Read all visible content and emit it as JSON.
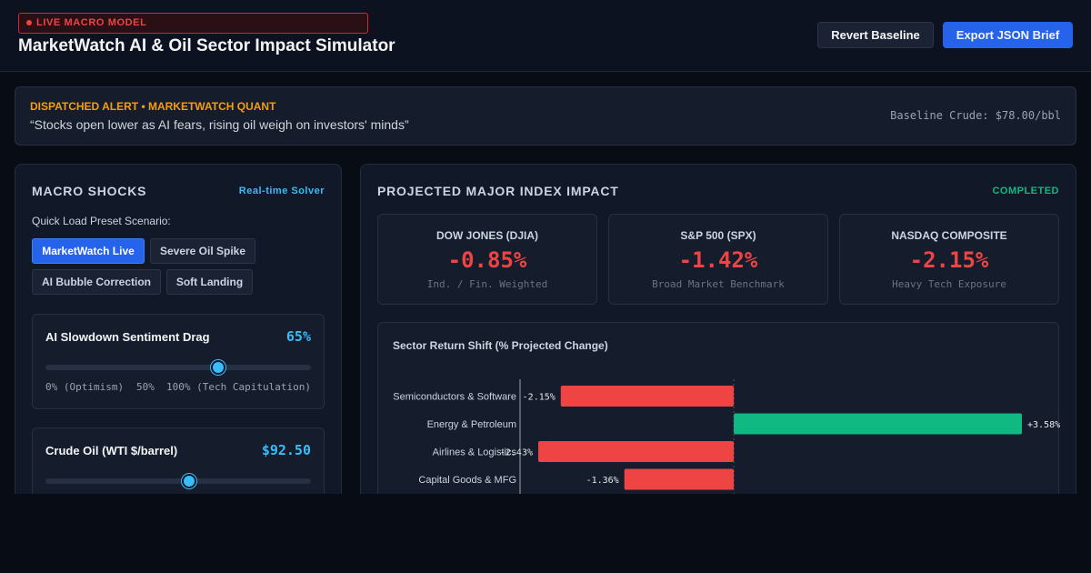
{
  "header": {
    "badge": "LIVE MACRO MODEL",
    "title": "MarketWatch AI & Oil Sector Impact Simulator",
    "revert_label": "Revert Baseline",
    "export_label": "Export JSON Brief"
  },
  "alert": {
    "kicker": "DISPATCHED ALERT • MARKETWATCH QUANT",
    "quote": "“Stocks open lower as AI fears, rising oil weigh on investors' minds”",
    "baseline": "Baseline Crude: $78.00/bbl"
  },
  "left": {
    "title": "MACRO SHOCKS",
    "tag": "Real-time Solver",
    "preset_label": "Quick Load Preset Scenario:",
    "presets": [
      "MarketWatch Live",
      "Severe Oil Spike",
      "AI Bubble Correction",
      "Soft Landing"
    ],
    "active_preset": "MarketWatch Live",
    "sliders": [
      {
        "title": "AI Slowdown Sentiment Drag",
        "value": "65%",
        "level": 0.65,
        "ticks": [
          "0% (Optimism)",
          "50%",
          "100% (Tech Capitulation)"
        ]
      },
      {
        "title": "Crude Oil (WTI $/barrel)",
        "value": "$92.50",
        "level": 0.54
      }
    ]
  },
  "right": {
    "title": "PROJECTED MAJOR INDEX IMPACT",
    "status": "COMPLETED",
    "indices": [
      {
        "name": "DOW JONES (DJIA)",
        "value": "-0.85%",
        "note": "Ind. / Fin. Weighted"
      },
      {
        "name": "S&P 500 (SPX)",
        "value": "-1.42%",
        "note": "Broad Market Benchmark"
      },
      {
        "name": "NASDAQ COMPOSITE",
        "value": "-2.15%",
        "note": "Heavy Tech Exposure"
      }
    ],
    "chart_title": "Sector Return Shift (% Projected Change)"
  },
  "colors": {
    "negative": "#ef4444",
    "positive": "#10b981",
    "accent": "#38bdf8",
    "primary": "#2563eb",
    "status": "#10b981"
  },
  "chart_data": {
    "type": "bar",
    "orientation": "horizontal",
    "title": "Sector Return Shift (% Projected Change)",
    "categories": [
      "Semiconductors & Software",
      "Energy & Petroleum",
      "Airlines & Logistics",
      "Capital Goods & MFG"
    ],
    "values": [
      -2.15,
      3.58,
      -2.43,
      -1.36
    ],
    "labels": [
      "-2.15%",
      "+3.58%",
      "-2.43%",
      "-1.36%"
    ],
    "xlim": [
      -2.43,
      3.58
    ],
    "grid": false
  }
}
